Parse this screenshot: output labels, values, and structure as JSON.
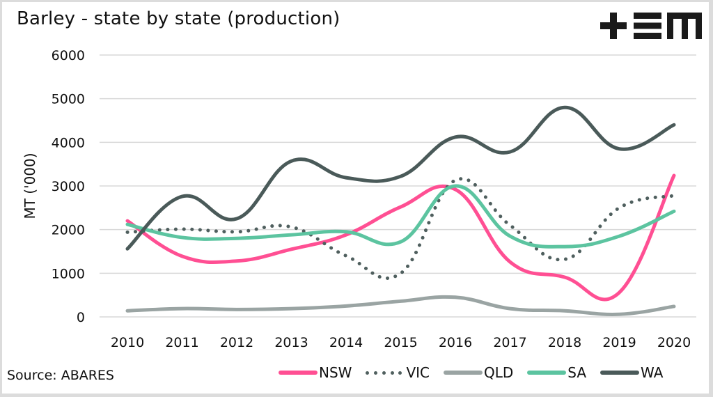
{
  "title": "Barley - state by state (production)",
  "source": "Source: ABARES",
  "logo_text": "+EM",
  "chart_data": {
    "type": "line",
    "title": "Barley - state by state (production)",
    "xlabel": "",
    "ylabel": "MT ('000)",
    "ylim": [
      0,
      6000
    ],
    "yticks": [
      "0",
      "1000",
      "2000",
      "3000",
      "4000",
      "5000",
      "6000"
    ],
    "ytick_values": [
      0,
      1000,
      2000,
      3000,
      4000,
      5000,
      6000
    ],
    "categories": [
      "2010",
      "2011",
      "2012",
      "2013",
      "2014",
      "2015",
      "2016",
      "2017",
      "2018",
      "2019",
      "2020"
    ],
    "grid": true,
    "legend_position": "bottom-right",
    "smooth": true,
    "series": [
      {
        "name": "NSW",
        "color": "#ff4f93",
        "style": "solid",
        "values": [
          2200,
          1390,
          1280,
          1550,
          1880,
          2520,
          2920,
          1260,
          910,
          560,
          3240
        ]
      },
      {
        "name": "VIC",
        "color": "#4f5f5e",
        "style": "dotted",
        "values": [
          1940,
          2010,
          1950,
          2060,
          1400,
          1000,
          3130,
          2100,
          1320,
          2500,
          2780
        ]
      },
      {
        "name": "QLD",
        "color": "#9aa4a3",
        "style": "solid",
        "values": [
          140,
          190,
          170,
          190,
          250,
          360,
          450,
          190,
          140,
          60,
          240
        ]
      },
      {
        "name": "SA",
        "color": "#5cc4a0",
        "style": "solid",
        "values": [
          2120,
          1820,
          1800,
          1880,
          1950,
          1720,
          3000,
          1850,
          1610,
          1850,
          2420
        ]
      },
      {
        "name": "WA",
        "color": "#4a5a59",
        "style": "solid",
        "values": [
          1560,
          2760,
          2250,
          3570,
          3190,
          3220,
          4120,
          3780,
          4800,
          3850,
          4400
        ]
      }
    ]
  }
}
